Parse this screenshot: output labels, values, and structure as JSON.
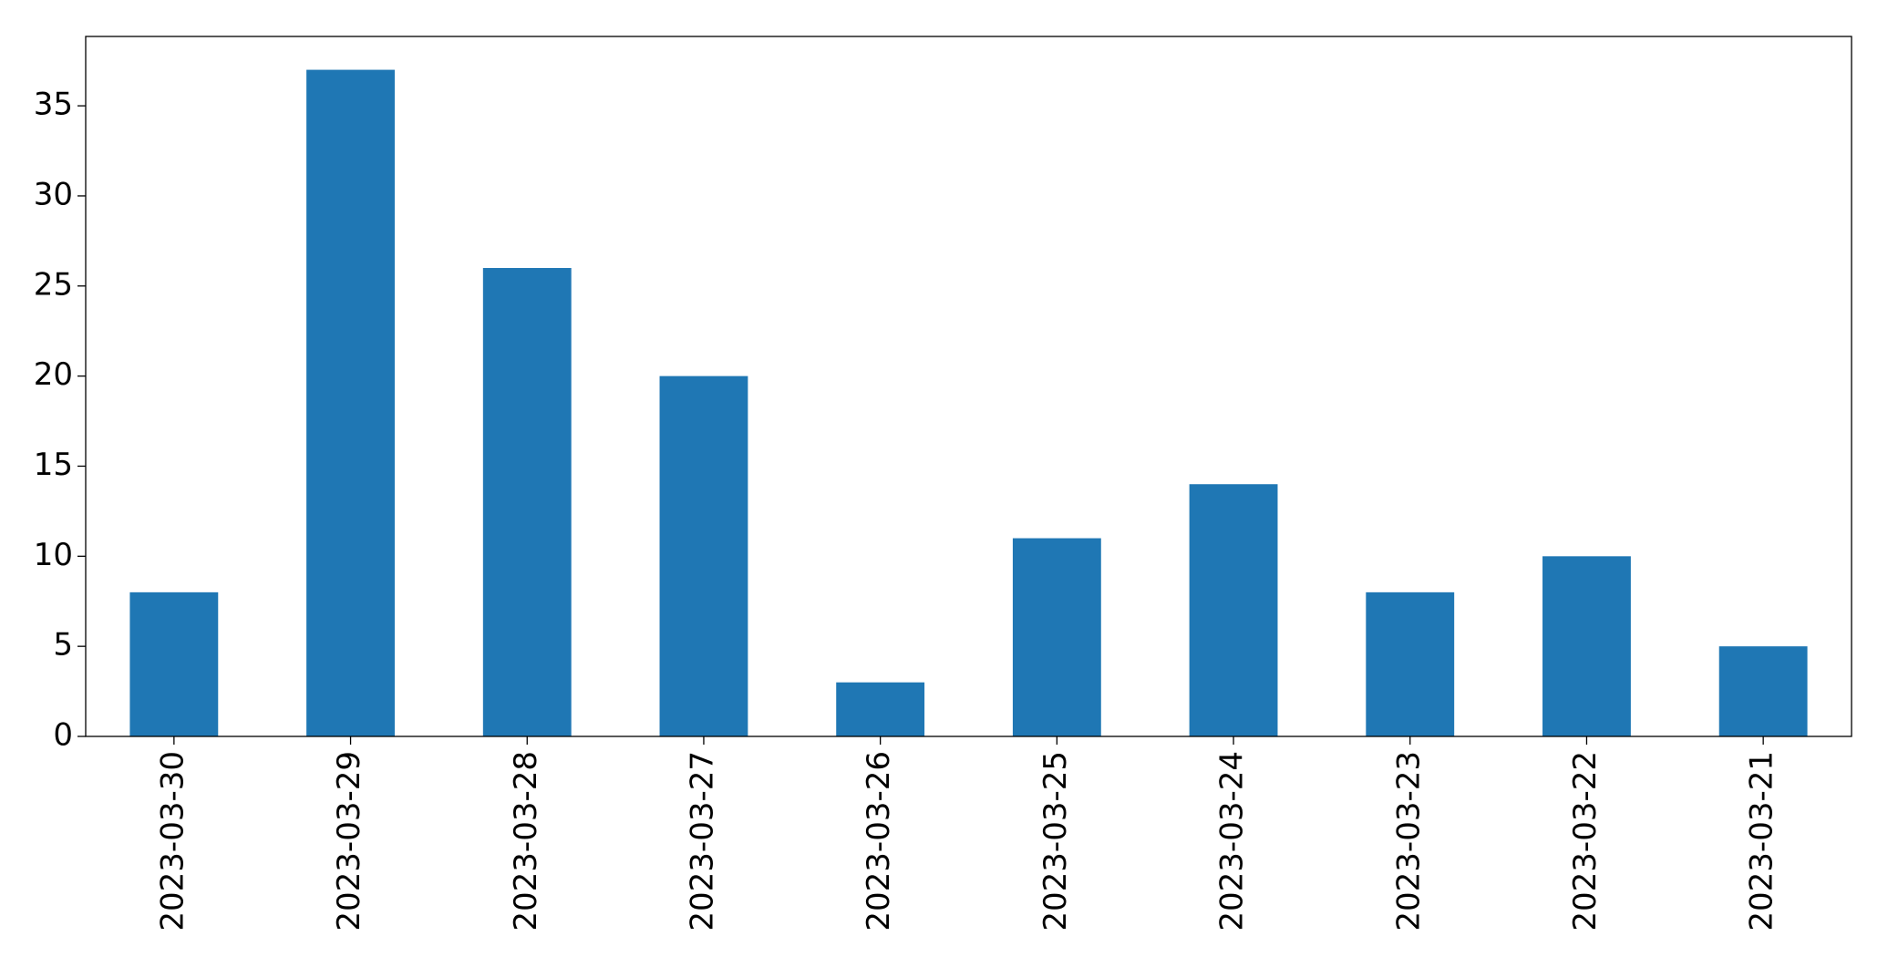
{
  "chart_data": {
    "type": "bar",
    "categories": [
      "2023-03-30",
      "2023-03-29",
      "2023-03-28",
      "2023-03-27",
      "2023-03-26",
      "2023-03-25",
      "2023-03-24",
      "2023-03-23",
      "2023-03-22",
      "2023-03-21"
    ],
    "values": [
      8,
      37,
      26,
      20,
      3,
      11,
      14,
      8,
      10,
      5
    ],
    "color": "#1f77b4",
    "ylim": [
      0,
      38.85
    ],
    "yticks": [
      0,
      5,
      10,
      15,
      20,
      25,
      30,
      35
    ],
    "grid": false
  }
}
